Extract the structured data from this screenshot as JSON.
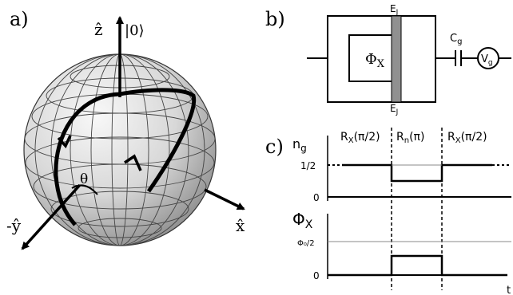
{
  "panel_a": {
    "letter": "a)",
    "z_label": "ẑ",
    "ket_label": "|0⟩",
    "x_label": "x̂",
    "y_label": "-ŷ",
    "angle_label": "θ"
  },
  "panel_b": {
    "letter": "b)",
    "flux_label": "Φ",
    "flux_sub": "X",
    "ej_top": "E",
    "ej_top_sub": "J",
    "ej_bottom": "E",
    "ej_bottom_sub": "J",
    "cap_label": "C",
    "cap_sub": "g",
    "source_label": "V",
    "source_sub": "g"
  },
  "panel_c": {
    "letter": "c)",
    "ng_label": "n",
    "ng_sub": "g",
    "seg1": "R",
    "seg1_sub": "X",
    "seg1_arg": "(π/2)",
    "seg2": "R",
    "seg2_sub": "n",
    "seg2_arg": "(π)",
    "seg3": "R",
    "seg3_sub": "X",
    "seg3_arg": "(π/2)",
    "top_tick_half": "1/2",
    "top_tick_zero": "0",
    "phi_label": "Φ",
    "phi_sub": "X",
    "phi_tick_half": "Φ₀/2",
    "phi_tick_zero": "0",
    "time_label": "t"
  }
}
